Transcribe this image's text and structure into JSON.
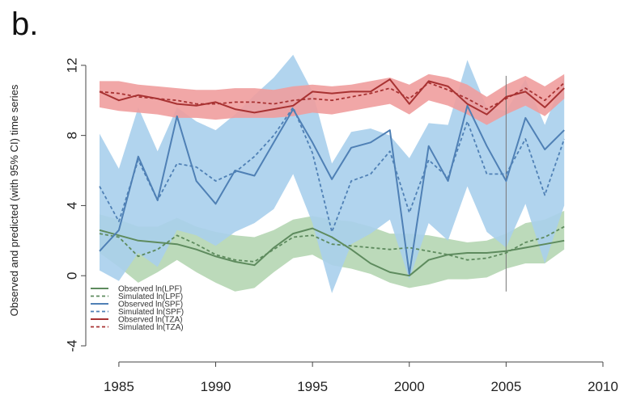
{
  "panel_label": "b.",
  "chart_data": {
    "type": "line",
    "title": "",
    "xlabel": "",
    "ylabel": "Observed and predicted (with 95% CI) time series",
    "xlim": [
      1983.5,
      2010
    ],
    "ylim": [
      -4,
      12.5
    ],
    "xticks": [
      1985,
      1990,
      1995,
      2000,
      2005,
      2010
    ],
    "yticks": [
      -4,
      0,
      4,
      8,
      12
    ],
    "vline_x": 2005,
    "grid": false,
    "legend_position": "bottom-left",
    "x": [
      1984,
      1985,
      1986,
      1987,
      1988,
      1989,
      1990,
      1991,
      1992,
      1993,
      1994,
      1995,
      1996,
      1997,
      1998,
      1999,
      2000,
      2001,
      2002,
      2003,
      2004,
      2005,
      2006,
      2007,
      2008
    ],
    "series": [
      {
        "name": "Observed ln(LPF)",
        "style": "solid",
        "color": "#5e8b5e",
        "values": [
          2.6,
          2.3,
          2.0,
          1.9,
          1.8,
          1.5,
          1.1,
          0.8,
          0.6,
          1.6,
          2.4,
          2.7,
          2.2,
          1.5,
          0.7,
          0.2,
          0.0,
          0.9,
          1.2,
          1.3,
          1.3,
          1.4,
          1.6,
          1.8,
          2.0
        ]
      },
      {
        "name": "Simulated ln(LPF)",
        "style": "dashed",
        "color": "#5e8b5e",
        "values": [
          2.4,
          2.2,
          1.1,
          1.5,
          2.3,
          1.8,
          1.2,
          0.9,
          0.8,
          1.5,
          2.2,
          2.3,
          1.8,
          1.7,
          1.6,
          1.5,
          1.6,
          1.4,
          1.2,
          0.9,
          1.0,
          1.3,
          1.9,
          2.2,
          2.8
        ],
        "ci_lower": [
          1.3,
          0.5,
          -0.4,
          0.2,
          0.9,
          0.2,
          -0.4,
          -0.9,
          -0.7,
          0.2,
          1.0,
          1.2,
          0.6,
          0.4,
          0.1,
          -0.4,
          -0.7,
          -0.5,
          -0.2,
          -0.2,
          -0.1,
          0.4,
          0.7,
          0.7,
          1.5
        ],
        "ci_upper": [
          3.5,
          3.2,
          2.8,
          2.8,
          3.3,
          2.8,
          2.5,
          2.3,
          2.2,
          2.6,
          3.2,
          3.4,
          3.2,
          3.1,
          2.8,
          2.4,
          2.4,
          2.3,
          2.1,
          1.9,
          2.0,
          2.4,
          3.0,
          3.2,
          3.7
        ]
      },
      {
        "name": "Observed ln(SPF)",
        "style": "solid",
        "color": "#4f80b5",
        "values": [
          1.4,
          2.6,
          6.8,
          4.3,
          9.1,
          5.4,
          4.1,
          6.0,
          5.7,
          7.6,
          9.5,
          7.6,
          5.5,
          7.3,
          7.6,
          8.3,
          0.1,
          7.4,
          5.4,
          9.7,
          7.4,
          5.4,
          9.0,
          7.2,
          8.3
        ]
      },
      {
        "name": "Simulated ln(SPF)",
        "style": "dashed",
        "color": "#4f80b5",
        "values": [
          5.1,
          3.1,
          6.6,
          4.3,
          6.4,
          6.2,
          5.4,
          5.9,
          6.8,
          8.0,
          9.6,
          7.0,
          2.5,
          5.4,
          5.8,
          7.1,
          3.6,
          6.6,
          5.6,
          8.8,
          5.8,
          5.8,
          7.8,
          4.6,
          7.8
        ],
        "ci_lower": [
          0.3,
          -0.3,
          1.3,
          0.5,
          2.6,
          2.3,
          1.7,
          2.5,
          3.0,
          3.8,
          5.8,
          3.0,
          -1.0,
          1.8,
          2.4,
          3.2,
          -0.2,
          3.0,
          2.0,
          5.1,
          2.5,
          1.6,
          4.1,
          0.7,
          4.0
        ],
        "ci_upper": [
          8.1,
          6.1,
          9.6,
          7.1,
          9.6,
          8.8,
          8.3,
          9.2,
          10.3,
          11.3,
          12.6,
          10.5,
          6.4,
          8.2,
          8.4,
          8.0,
          6.7,
          8.7,
          8.6,
          12.3,
          9.6,
          9.4,
          11.2,
          8.6,
          11.4
        ]
      },
      {
        "name": "Observed ln(TZA)",
        "style": "solid",
        "color": "#a83232",
        "values": [
          10.5,
          10.0,
          10.3,
          10.1,
          9.8,
          9.7,
          9.9,
          9.5,
          9.3,
          9.5,
          9.7,
          10.5,
          10.4,
          10.5,
          10.5,
          11.2,
          9.8,
          11.1,
          10.8,
          9.8,
          9.2,
          10.2,
          10.5,
          9.6,
          10.7
        ]
      },
      {
        "name": "Simulated ln(TZA)",
        "style": "dashed",
        "color": "#a83232",
        "values": [
          10.5,
          10.4,
          10.2,
          10.1,
          10.0,
          9.8,
          9.8,
          9.9,
          9.9,
          9.8,
          10.0,
          10.1,
          10.0,
          10.2,
          10.4,
          10.7,
          10.1,
          11.0,
          10.6,
          10.1,
          9.5,
          10.1,
          10.7,
          10.0,
          11.0
        ],
        "ci_lower": [
          9.6,
          9.4,
          9.3,
          9.2,
          9.0,
          9.0,
          8.9,
          9.0,
          9.0,
          9.0,
          9.1,
          9.3,
          9.2,
          9.4,
          9.6,
          9.8,
          9.2,
          10.0,
          9.7,
          9.2,
          8.6,
          9.2,
          9.7,
          9.1,
          10.1
        ],
        "ci_upper": [
          11.1,
          11.1,
          10.9,
          10.8,
          10.7,
          10.6,
          10.6,
          10.7,
          10.7,
          10.6,
          10.8,
          10.9,
          10.8,
          10.9,
          11.1,
          11.3,
          10.9,
          11.5,
          11.3,
          10.9,
          10.2,
          10.9,
          11.4,
          10.8,
          11.5
        ]
      }
    ],
    "band_colors": [
      "#b5d6b2",
      "#a9cfec",
      "#ef9d9d"
    ]
  }
}
